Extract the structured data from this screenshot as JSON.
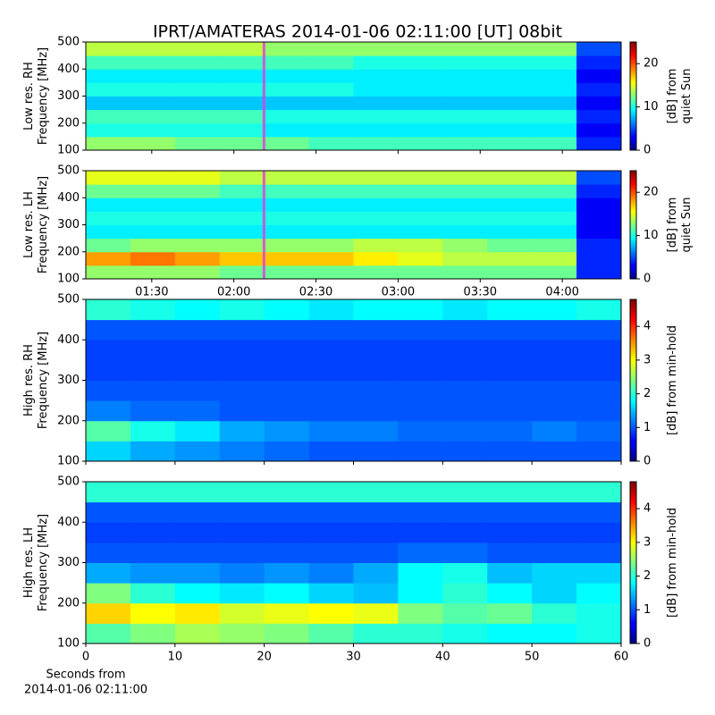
{
  "chart_data": [
    {
      "type": "heatmap",
      "title": "IPRT/AMATERAS 2014-01-06 02:11:00 [UT]   08bit",
      "ylabel": [
        "Low res. RH",
        "Frequency [MHz]"
      ],
      "xlim": [
        65.9,
        261.5
      ],
      "xticks": [
        {
          "value": 90,
          "label": "01:30"
        },
        {
          "value": 120,
          "label": "02:00"
        },
        {
          "value": 150,
          "label": "02:30"
        },
        {
          "value": 180,
          "label": "03:00"
        },
        {
          "value": 210,
          "label": "03:30"
        },
        {
          "value": 240,
          "label": "04:00"
        }
      ],
      "show_xtick_labels": false,
      "ylim": [
        100,
        500
      ],
      "yticks": [
        100,
        200,
        300,
        400,
        500
      ],
      "zlim": [
        0,
        25
      ],
      "zticks": [
        0,
        10,
        20
      ],
      "colorbar_label": [
        "[dB] from",
        "quiet Sun"
      ],
      "colormap": "jet",
      "cursor": 131,
      "cursor_color": "#e040e0",
      "z": [
        [
          13,
          13,
          12,
          12,
          12,
          11,
          11,
          11,
          11,
          11,
          11,
          4
        ],
        [
          10,
          10,
          10,
          10,
          9,
          9,
          9,
          9,
          9,
          9,
          9,
          3
        ],
        [
          11,
          11,
          11,
          11,
          10,
          10,
          10,
          10,
          10,
          10,
          10,
          4
        ],
        [
          8,
          8,
          8,
          8,
          8,
          8,
          8,
          8,
          8,
          8,
          8,
          3
        ],
        [
          10,
          10,
          10,
          10,
          10,
          10,
          9,
          9,
          9,
          9,
          9,
          4
        ],
        [
          9,
          9,
          9,
          9,
          9,
          9,
          9,
          9,
          9,
          9,
          9,
          3
        ],
        [
          11,
          11,
          11,
          11,
          11,
          11,
          10,
          10,
          10,
          10,
          10,
          4
        ],
        [
          14,
          14,
          14,
          14,
          13,
          13,
          13,
          13,
          13,
          13,
          13,
          5
        ]
      ]
    },
    {
      "type": "heatmap",
      "ylabel": [
        "Low res. LH",
        "Frequency [MHz]"
      ],
      "xlim": [
        65.9,
        261.5
      ],
      "xticks": [
        {
          "value": 90,
          "label": "01:30"
        },
        {
          "value": 120,
          "label": "02:00"
        },
        {
          "value": 150,
          "label": "02:30"
        },
        {
          "value": 180,
          "label": "03:00"
        },
        {
          "value": 210,
          "label": "03:30"
        },
        {
          "value": 240,
          "label": "04:00"
        }
      ],
      "show_xtick_labels": true,
      "ylim": [
        100,
        500
      ],
      "yticks": [
        100,
        200,
        300,
        400,
        500
      ],
      "zlim": [
        0,
        25
      ],
      "zticks": [
        0,
        10,
        20
      ],
      "colorbar_label": [
        "[dB] from",
        "quiet Sun"
      ],
      "colormap": "jet",
      "cursor": 131,
      "cursor_color": "#e040e0",
      "z": [
        [
          13,
          13,
          13,
          12,
          12,
          12,
          12,
          12,
          12,
          12,
          12,
          4
        ],
        [
          18,
          19,
          18,
          17,
          17,
          17,
          16,
          15,
          14,
          14,
          14,
          4
        ],
        [
          12,
          13,
          13,
          13,
          13,
          13,
          14,
          14,
          13,
          12,
          12,
          4
        ],
        [
          9,
          9,
          9,
          9,
          9,
          9,
          9,
          9,
          9,
          9,
          9,
          3
        ],
        [
          10,
          10,
          10,
          10,
          10,
          10,
          10,
          10,
          10,
          10,
          10,
          3
        ],
        [
          9,
          9,
          9,
          9,
          9,
          9,
          9,
          9,
          9,
          9,
          9,
          3
        ],
        [
          12,
          12,
          12,
          11,
          11,
          11,
          11,
          11,
          11,
          11,
          11,
          4
        ],
        [
          15,
          15,
          15,
          14,
          14,
          14,
          14,
          14,
          14,
          14,
          14,
          5
        ]
      ]
    },
    {
      "type": "heatmap",
      "ylabel": [
        "High res. RH",
        "Frequency [MHz]"
      ],
      "xlim": [
        0,
        60
      ],
      "xticks": [
        0,
        10,
        20,
        30,
        40,
        50,
        60
      ],
      "show_xtick_labels": false,
      "ylim": [
        100,
        500
      ],
      "yticks": [
        100,
        200,
        300,
        400,
        500
      ],
      "zlim": [
        0,
        4.8
      ],
      "zticks": [
        0,
        1,
        2,
        3,
        4
      ],
      "colorbar_label": [
        "[dB] from min-hold"
      ],
      "colormap": "jet",
      "z": [
        [
          1.6,
          1.4,
          1.3,
          1.2,
          1.1,
          1.0,
          1.0,
          1.0,
          1.0,
          1.0,
          1.0,
          1.0
        ],
        [
          2.2,
          1.9,
          1.7,
          1.4,
          1.3,
          1.2,
          1.2,
          1.1,
          1.1,
          1.1,
          1.2,
          1.1
        ],
        [
          1.2,
          1.1,
          1.1,
          1.0,
          1.0,
          1.0,
          1.0,
          1.0,
          1.0,
          1.0,
          1.0,
          1.0
        ],
        [
          1.0,
          1.0,
          1.0,
          1.0,
          1.0,
          1.0,
          1.0,
          1.0,
          1.0,
          1.0,
          1.0,
          1.0
        ],
        [
          0.9,
          0.9,
          0.9,
          0.9,
          0.9,
          0.9,
          0.9,
          0.9,
          0.9,
          0.9,
          0.9,
          0.9
        ],
        [
          0.9,
          0.9,
          0.9,
          0.9,
          0.9,
          0.9,
          0.9,
          0.9,
          0.9,
          0.9,
          0.9,
          0.9
        ],
        [
          1.0,
          1.0,
          1.0,
          1.0,
          1.0,
          1.0,
          1.0,
          1.0,
          1.0,
          1.0,
          1.0,
          1.0
        ],
        [
          2.0,
          1.9,
          1.8,
          1.9,
          1.8,
          1.7,
          1.8,
          1.8,
          1.7,
          1.8,
          1.8,
          1.9
        ]
      ]
    },
    {
      "type": "heatmap",
      "ylabel": [
        "High res. LH",
        "Frequency [MHz]"
      ],
      "xlabel": [
        "Seconds from",
        "2014-01-06 02:11:00"
      ],
      "xlim": [
        0,
        60
      ],
      "xticks": [
        0,
        10,
        20,
        30,
        40,
        50,
        60
      ],
      "show_xtick_labels": true,
      "ylim": [
        100,
        500
      ],
      "yticks": [
        100,
        200,
        300,
        400,
        500
      ],
      "zlim": [
        0,
        4.8
      ],
      "zticks": [
        0,
        1,
        2,
        3,
        4
      ],
      "colorbar_label": [
        "[dB] from min-hold"
      ],
      "colormap": "jet",
      "z": [
        [
          2.2,
          2.4,
          2.6,
          2.5,
          2.4,
          2.2,
          2.0,
          2.0,
          1.9,
          1.8,
          1.8,
          1.9
        ],
        [
          3.2,
          3.0,
          3.1,
          2.8,
          2.9,
          3.0,
          2.9,
          2.4,
          2.2,
          2.3,
          2.0,
          1.9
        ],
        [
          2.4,
          2.0,
          1.8,
          1.7,
          1.8,
          1.6,
          1.5,
          1.8,
          2.0,
          1.8,
          1.6,
          1.8
        ],
        [
          1.4,
          1.3,
          1.3,
          1.2,
          1.3,
          1.2,
          1.4,
          1.8,
          1.9,
          1.5,
          1.6,
          1.6
        ],
        [
          1.0,
          1.0,
          1.0,
          1.0,
          1.0,
          1.0,
          1.0,
          1.1,
          1.1,
          1.0,
          1.0,
          1.0
        ],
        [
          0.9,
          0.9,
          0.9,
          0.9,
          0.9,
          0.9,
          0.9,
          0.9,
          0.9,
          0.9,
          0.9,
          0.9
        ],
        [
          1.0,
          1.0,
          1.0,
          1.0,
          1.0,
          1.0,
          1.0,
          1.0,
          1.0,
          1.0,
          1.0,
          1.0
        ],
        [
          2.0,
          2.0,
          2.0,
          2.0,
          2.0,
          2.0,
          2.0,
          2.0,
          2.0,
          2.0,
          2.0,
          2.0
        ]
      ]
    }
  ]
}
